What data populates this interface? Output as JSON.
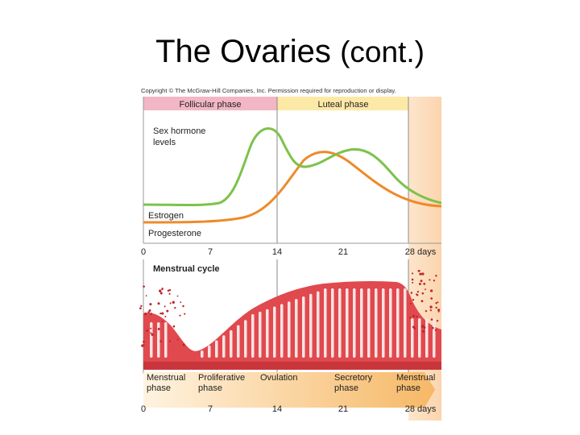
{
  "slide": {
    "title_main": "The Ovaries",
    "title_suffix": "(cont.)"
  },
  "figure": {
    "copyright": "Copyright © The McGraw-Hill Companies, Inc. Permission required for reproduction or display.",
    "phases_top": {
      "follicular": "Follicular phase",
      "luteal": "Luteal phase"
    },
    "hormone_panel": {
      "heading_line1": "Sex hormone",
      "heading_line2": "levels",
      "estrogen_label": "Estrogen",
      "progesterone_label": "Progesterone"
    },
    "day_axis": [
      "0",
      "7",
      "14",
      "21",
      "28 days"
    ],
    "cycle_panel_heading": "Menstrual cycle",
    "phases_bottom": [
      {
        "line1": "Menstrual",
        "line2": "phase"
      },
      {
        "line1": "Proliferative",
        "line2": "phase"
      },
      {
        "line1": "Ovulation",
        "line2": ""
      },
      {
        "line1": "Secretory",
        "line2": "phase"
      },
      {
        "line1": "Menstrual",
        "line2": "phase"
      }
    ],
    "colors": {
      "estrogen": "#7dc24a",
      "progesterone": "#ee8a2a",
      "follicular_band": "#f2b6c6",
      "luteal_band": "#fde9a6",
      "endometrium": "#e0494e",
      "arrow": "#f7c98a"
    }
  }
}
